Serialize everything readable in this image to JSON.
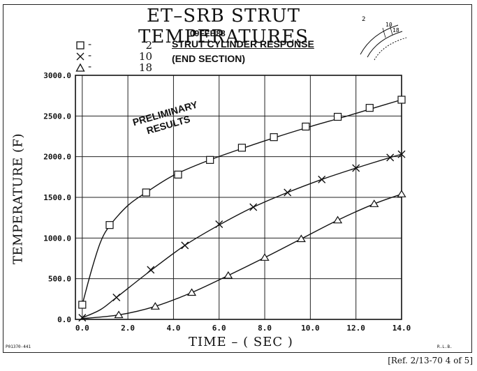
{
  "header": {
    "title": "ET–SRB STRUT TEMPERATURES",
    "date": "09FEB88",
    "subtitle_line1": "STRUT CYLINDER RESPONSE",
    "subtitle_line2": "(END SECTION)",
    "note_line1": "PRELIMINARY",
    "note_line2": "RESULTS",
    "reference": "[Ref. 2/13-70 4 of 5]",
    "corner_id_left": "P01370-441",
    "corner_id_right": "R.L.B."
  },
  "legend": [
    {
      "symbol": "square",
      "label": "2"
    },
    {
      "symbol": "x",
      "label": "10"
    },
    {
      "symbol": "triangle",
      "label": "18"
    }
  ],
  "sketch": {
    "labels": [
      "2",
      "10",
      "18"
    ]
  },
  "chart_data": {
    "type": "line",
    "xlabel": "TIME – ( SEC )",
    "ylabel": "TEMPERATURE (F)",
    "xlim": [
      -0.3,
      14.0
    ],
    "ylim": [
      0.0,
      3000.0
    ],
    "x_ticks": [
      "0.0",
      "2.0",
      "4.0",
      "6.0",
      "8.0",
      "10.0",
      "12.0",
      "14.0"
    ],
    "y_ticks": [
      "0.0",
      "500.0",
      "1000.0",
      "1500.0",
      "2000.0",
      "2500.0",
      "3000.0"
    ],
    "grid": true,
    "series": [
      {
        "name": "2",
        "marker": "square",
        "curve": [
          [
            0.0,
            180
          ],
          [
            0.4,
            600
          ],
          [
            0.8,
            950
          ],
          [
            1.2,
            1150
          ],
          [
            2.0,
            1400
          ],
          [
            2.8,
            1560
          ],
          [
            4.0,
            1770
          ],
          [
            5.5,
            1950
          ],
          [
            7.0,
            2100
          ],
          [
            8.5,
            2240
          ],
          [
            10.0,
            2370
          ],
          [
            11.5,
            2490
          ],
          [
            12.8,
            2600
          ],
          [
            14.0,
            2700
          ]
        ],
        "markers": [
          [
            0.0,
            180
          ],
          [
            1.2,
            1160
          ],
          [
            2.8,
            1560
          ],
          [
            4.2,
            1780
          ],
          [
            5.6,
            1960
          ],
          [
            7.0,
            2110
          ],
          [
            8.4,
            2240
          ],
          [
            9.8,
            2370
          ],
          [
            11.2,
            2490
          ],
          [
            12.6,
            2600
          ],
          [
            14.0,
            2700
          ]
        ]
      },
      {
        "name": "10",
        "marker": "x",
        "curve": [
          [
            0.0,
            20
          ],
          [
            0.8,
            120
          ],
          [
            1.5,
            270
          ],
          [
            3.0,
            600
          ],
          [
            4.5,
            910
          ],
          [
            6.0,
            1160
          ],
          [
            7.5,
            1380
          ],
          [
            9.0,
            1560
          ],
          [
            10.5,
            1720
          ],
          [
            12.0,
            1860
          ],
          [
            13.5,
            1990
          ],
          [
            14.0,
            2030
          ]
        ],
        "markers": [
          [
            0.0,
            20
          ],
          [
            1.5,
            270
          ],
          [
            3.0,
            610
          ],
          [
            4.5,
            910
          ],
          [
            6.0,
            1170
          ],
          [
            7.5,
            1380
          ],
          [
            9.0,
            1560
          ],
          [
            10.5,
            1720
          ],
          [
            12.0,
            1860
          ],
          [
            13.5,
            1990
          ],
          [
            14.0,
            2030
          ]
        ]
      },
      {
        "name": "18",
        "marker": "triangle",
        "curve": [
          [
            0.0,
            10
          ],
          [
            1.6,
            55
          ],
          [
            3.2,
            160
          ],
          [
            4.8,
            330
          ],
          [
            6.4,
            540
          ],
          [
            8.0,
            760
          ],
          [
            9.6,
            990
          ],
          [
            11.2,
            1220
          ],
          [
            12.8,
            1420
          ],
          [
            14.0,
            1540
          ]
        ],
        "markers": [
          [
            1.6,
            55
          ],
          [
            3.2,
            160
          ],
          [
            4.8,
            330
          ],
          [
            6.4,
            540
          ],
          [
            8.0,
            760
          ],
          [
            9.6,
            990
          ],
          [
            11.2,
            1220
          ],
          [
            12.8,
            1420
          ],
          [
            14.0,
            1540
          ]
        ]
      }
    ]
  }
}
